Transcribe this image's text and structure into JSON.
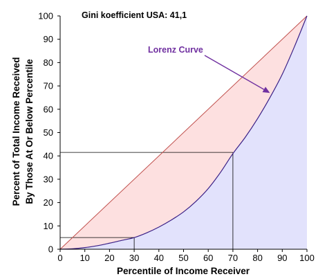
{
  "chart_data": {
    "type": "line",
    "title": "Gini koefficient USA: 41,1",
    "xlabel": "Percentile of Income Receiver",
    "ylabel_line1": "Percent of Total Income Received",
    "ylabel_line2": "By Those At Or Below Percentile",
    "xlim": [
      0,
      100
    ],
    "ylim": [
      0,
      100
    ],
    "x_ticks": [
      0,
      10,
      20,
      30,
      40,
      50,
      60,
      70,
      80,
      90,
      100
    ],
    "y_ticks": [
      0,
      10,
      20,
      30,
      40,
      50,
      60,
      70,
      80,
      90,
      100
    ],
    "grid": false,
    "series": [
      {
        "name": "Lorenz Curve",
        "x": [
          0,
          5,
          10,
          15,
          20,
          25,
          30,
          35,
          40,
          45,
          50,
          55,
          60,
          65,
          70,
          75,
          80,
          85,
          90,
          95,
          100
        ],
        "values": [
          0,
          0.2,
          0.7,
          1.5,
          2.6,
          3.8,
          5,
          7,
          9.5,
          12.5,
          16,
          20.5,
          26,
          33,
          41,
          48,
          56,
          65,
          75,
          87,
          100
        ]
      },
      {
        "name": "",
        "x": [
          0,
          100
        ],
        "values": [
          0,
          100
        ]
      }
    ],
    "reference_lines": [
      {
        "x": 30,
        "y": 5
      },
      {
        "x": 70,
        "y": 41.5
      }
    ],
    "annotation_label": "Lorenz Curve",
    "annotation_arrow_target": {
      "x": 85,
      "y": 67
    },
    "colors": {
      "equality_line": "#c0504d",
      "lorenz_curve": "#3a1f86",
      "label": "#7030a0",
      "area_above": "#fde0e0",
      "area_below": "#e2e2fc"
    }
  }
}
